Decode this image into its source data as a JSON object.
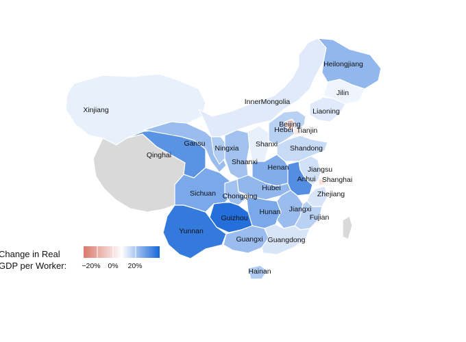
{
  "legend": {
    "title_line1": "Change in Real",
    "title_line2": "GDP per Worker:",
    "ticks": [
      "−20%",
      "0%",
      "20%"
    ],
    "scale_min": -30,
    "scale_max": 30
  },
  "colors": {
    "negative": "#d9786a",
    "neutral": "#ffffff",
    "positive": "#1565d8",
    "no_data": "#d9d9d9",
    "taiwan": "#d9d9d9"
  },
  "provinces": [
    {
      "id": "xinjiang",
      "label": "Xinjiang",
      "value": 3
    },
    {
      "id": "tibet",
      "label": "",
      "value": null
    },
    {
      "id": "qinghai",
      "label": "Qinghai",
      "value": 21
    },
    {
      "id": "gansu",
      "label": "Gansu",
      "value": 13
    },
    {
      "id": "innermongolia",
      "label": "InnerMongolia",
      "value": 4
    },
    {
      "id": "ningxia",
      "label": "Ningxia",
      "value": 10
    },
    {
      "id": "shaanxi",
      "label": "Shaanxi",
      "value": 12
    },
    {
      "id": "shanxi",
      "label": "Shanxi",
      "value": 3
    },
    {
      "id": "heilongjiang",
      "label": "Heilongjiang",
      "value": 14
    },
    {
      "id": "jilin",
      "label": "Jilin",
      "value": 2
    },
    {
      "id": "liaoning",
      "label": "Liaoning",
      "value": 4
    },
    {
      "id": "hebei",
      "label": "Hebei",
      "value": 9
    },
    {
      "id": "beijing",
      "label": "Beijing",
      "value": -8
    },
    {
      "id": "tianjin",
      "label": "Tianjin",
      "value": -5
    },
    {
      "id": "shandong",
      "label": "Shandong",
      "value": 7
    },
    {
      "id": "henan",
      "label": "Henan",
      "value": 16
    },
    {
      "id": "jiangsu",
      "label": "Jiangsu",
      "value": 6
    },
    {
      "id": "anhui",
      "label": "Anhui",
      "value": 22
    },
    {
      "id": "shanghai",
      "label": "Shanghai",
      "value": -6
    },
    {
      "id": "hubei",
      "label": "Hubei",
      "value": 14
    },
    {
      "id": "zhejiang",
      "label": "Zhejiang",
      "value": 5
    },
    {
      "id": "sichuan",
      "label": "Sichuan",
      "value": 17
    },
    {
      "id": "chongqing",
      "label": "Chongqing",
      "value": 12
    },
    {
      "id": "hunan",
      "label": "Hunan",
      "value": 17
    },
    {
      "id": "jiangxi",
      "label": "Jiangxi",
      "value": 13
    },
    {
      "id": "fujian",
      "label": "Fujian",
      "value": 9
    },
    {
      "id": "guizhou",
      "label": "Guizhou",
      "value": 28
    },
    {
      "id": "yunnan",
      "label": "Yunnan",
      "value": 26
    },
    {
      "id": "guangxi",
      "label": "Guangxi",
      "value": 13
    },
    {
      "id": "guangdong",
      "label": "Guangdong",
      "value": 5
    },
    {
      "id": "hainan",
      "label": "Hainan",
      "value": 10
    },
    {
      "id": "taiwan",
      "label": "",
      "value": null
    }
  ]
}
